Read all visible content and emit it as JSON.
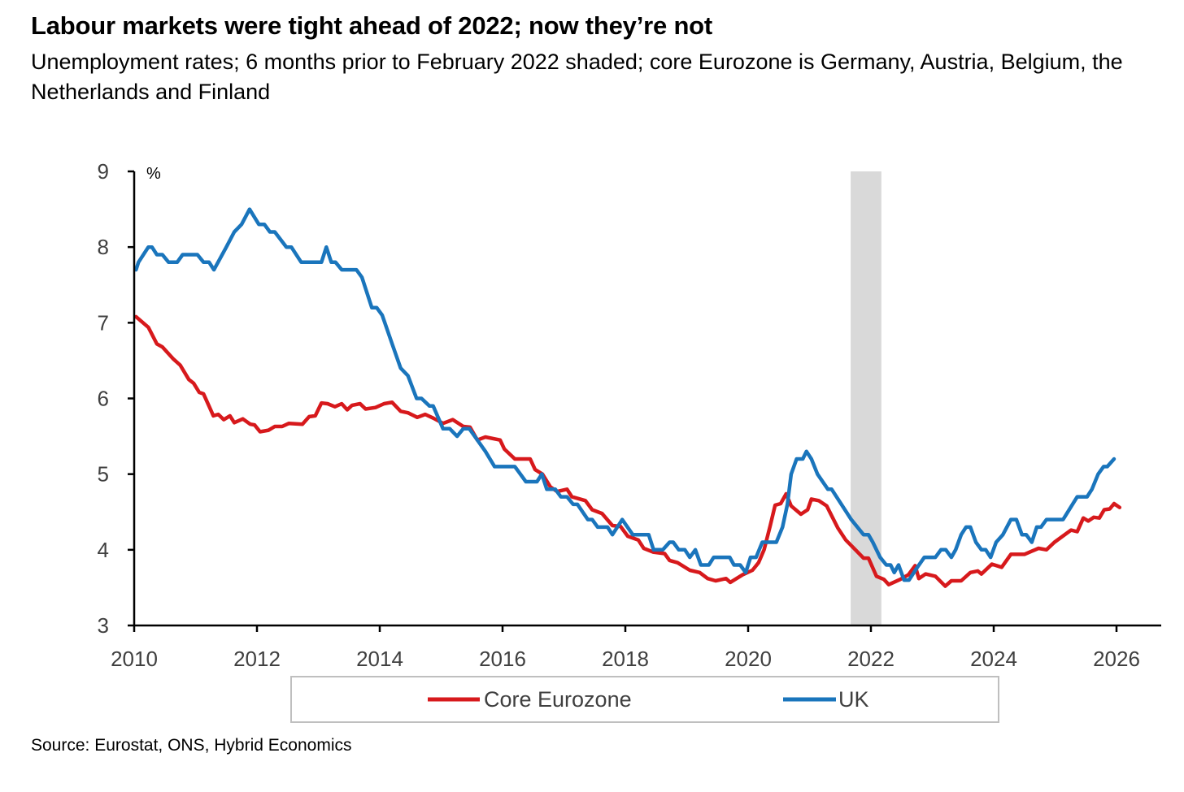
{
  "title": "Labour markets were tight ahead of 2022; now they’re not",
  "subtitle": "Unemployment rates; 6 months prior to February 2022 shaded; core Eurozone is Germany, Austria, Belgium, the Netherlands and Finland",
  "source": "Source: Eurostat, ONS, Hybrid Economics",
  "chart_data": {
    "type": "line",
    "title": "Labour markets were tight ahead of 2022; now they’re not",
    "xlabel": "",
    "ylabel": "%",
    "xlim": [
      2010,
      2026.7
    ],
    "ylim": [
      3,
      9
    ],
    "x_ticks": [
      "2010",
      "2012",
      "2014",
      "2016",
      "2018",
      "2020",
      "2022",
      "2024",
      "2026"
    ],
    "y_ticks": [
      "3",
      "4",
      "5",
      "6",
      "7",
      "8",
      "9"
    ],
    "grid": false,
    "legend_position": "bottom",
    "shaded_period": {
      "label": "6 months prior to February 2022",
      "start": 2021.67,
      "end": 2022.17,
      "color": "#d9d9d9"
    },
    "series": [
      {
        "name": "Core Eurozone",
        "color": "#d7191c",
        "points": [
          [
            2010.03,
            7.08
          ],
          [
            2010.23,
            6.94
          ],
          [
            2010.37,
            6.72
          ],
          [
            2010.46,
            6.68
          ],
          [
            2010.64,
            6.52
          ],
          [
            2010.75,
            6.44
          ],
          [
            2010.89,
            6.25
          ],
          [
            2010.97,
            6.2
          ],
          [
            2011.06,
            6.08
          ],
          [
            2011.13,
            6.06
          ],
          [
            2011.29,
            5.77
          ],
          [
            2011.37,
            5.79
          ],
          [
            2011.46,
            5.72
          ],
          [
            2011.56,
            5.77
          ],
          [
            2011.63,
            5.68
          ],
          [
            2011.77,
            5.73
          ],
          [
            2011.89,
            5.66
          ],
          [
            2011.96,
            5.65
          ],
          [
            2012.05,
            5.56
          ],
          [
            2012.19,
            5.58
          ],
          [
            2012.29,
            5.63
          ],
          [
            2012.41,
            5.63
          ],
          [
            2012.52,
            5.67
          ],
          [
            2012.74,
            5.66
          ],
          [
            2012.85,
            5.76
          ],
          [
            2012.95,
            5.77
          ],
          [
            2013.05,
            5.94
          ],
          [
            2013.15,
            5.93
          ],
          [
            2013.27,
            5.89
          ],
          [
            2013.38,
            5.93
          ],
          [
            2013.47,
            5.85
          ],
          [
            2013.55,
            5.91
          ],
          [
            2013.68,
            5.93
          ],
          [
            2013.77,
            5.86
          ],
          [
            2013.93,
            5.88
          ],
          [
            2014.07,
            5.93
          ],
          [
            2014.2,
            5.95
          ],
          [
            2014.34,
            5.83
          ],
          [
            2014.46,
            5.81
          ],
          [
            2014.61,
            5.75
          ],
          [
            2014.74,
            5.79
          ],
          [
            2014.87,
            5.74
          ],
          [
            2015.03,
            5.67
          ],
          [
            2015.19,
            5.72
          ],
          [
            2015.36,
            5.63
          ],
          [
            2015.47,
            5.62
          ],
          [
            2015.59,
            5.45
          ],
          [
            2015.72,
            5.49
          ],
          [
            2015.96,
            5.45
          ],
          [
            2016.03,
            5.33
          ],
          [
            2016.2,
            5.2
          ],
          [
            2016.45,
            5.2
          ],
          [
            2016.53,
            5.06
          ],
          [
            2016.65,
            5.0
          ],
          [
            2016.78,
            4.83
          ],
          [
            2016.89,
            4.77
          ],
          [
            2017.05,
            4.8
          ],
          [
            2017.13,
            4.7
          ],
          [
            2017.35,
            4.65
          ],
          [
            2017.46,
            4.53
          ],
          [
            2017.62,
            4.48
          ],
          [
            2017.79,
            4.32
          ],
          [
            2017.92,
            4.31
          ],
          [
            2018.04,
            4.18
          ],
          [
            2018.21,
            4.13
          ],
          [
            2018.3,
            4.02
          ],
          [
            2018.45,
            3.97
          ],
          [
            2018.64,
            3.95
          ],
          [
            2018.72,
            3.86
          ],
          [
            2018.85,
            3.83
          ],
          [
            2019.05,
            3.73
          ],
          [
            2019.21,
            3.7
          ],
          [
            2019.34,
            3.62
          ],
          [
            2019.47,
            3.59
          ],
          [
            2019.64,
            3.62
          ],
          [
            2019.71,
            3.57
          ],
          [
            2019.91,
            3.67
          ],
          [
            2020.07,
            3.73
          ],
          [
            2020.17,
            3.83
          ],
          [
            2020.26,
            4.0
          ],
          [
            2020.36,
            4.32
          ],
          [
            2020.44,
            4.59
          ],
          [
            2020.53,
            4.61
          ],
          [
            2020.62,
            4.74
          ],
          [
            2020.7,
            4.58
          ],
          [
            2020.86,
            4.47
          ],
          [
            2020.97,
            4.53
          ],
          [
            2021.03,
            4.67
          ],
          [
            2021.15,
            4.65
          ],
          [
            2021.28,
            4.58
          ],
          [
            2021.46,
            4.29
          ],
          [
            2021.59,
            4.13
          ],
          [
            2021.76,
            3.99
          ],
          [
            2021.88,
            3.89
          ],
          [
            2021.96,
            3.89
          ],
          [
            2022.09,
            3.65
          ],
          [
            2022.21,
            3.61
          ],
          [
            2022.29,
            3.54
          ],
          [
            2022.48,
            3.61
          ],
          [
            2022.61,
            3.67
          ],
          [
            2022.72,
            3.79
          ],
          [
            2022.78,
            3.62
          ],
          [
            2022.89,
            3.68
          ],
          [
            2023.05,
            3.65
          ],
          [
            2023.21,
            3.52
          ],
          [
            2023.31,
            3.59
          ],
          [
            2023.47,
            3.59
          ],
          [
            2023.62,
            3.7
          ],
          [
            2023.74,
            3.72
          ],
          [
            2023.8,
            3.68
          ],
          [
            2023.97,
            3.81
          ],
          [
            2024.13,
            3.77
          ],
          [
            2024.28,
            3.94
          ],
          [
            2024.5,
            3.94
          ],
          [
            2024.73,
            4.02
          ],
          [
            2024.86,
            4.0
          ],
          [
            2024.99,
            4.1
          ],
          [
            2025.26,
            4.26
          ],
          [
            2025.36,
            4.24
          ],
          [
            2025.46,
            4.42
          ],
          [
            2025.54,
            4.38
          ],
          [
            2025.63,
            4.43
          ],
          [
            2025.72,
            4.42
          ],
          [
            2025.8,
            4.53
          ],
          [
            2025.89,
            4.54
          ],
          [
            2025.96,
            4.61
          ],
          [
            2026.05,
            4.56
          ]
        ]
      },
      {
        "name": "UK",
        "color": "#1a75bc",
        "points": [
          [
            2010.03,
            7.7
          ],
          [
            2010.07,
            7.8
          ],
          [
            2010.23,
            8.0
          ],
          [
            2010.29,
            8.0
          ],
          [
            2010.37,
            7.9
          ],
          [
            2010.46,
            7.9
          ],
          [
            2010.56,
            7.8
          ],
          [
            2010.7,
            7.8
          ],
          [
            2010.79,
            7.9
          ],
          [
            2011.03,
            7.9
          ],
          [
            2011.13,
            7.8
          ],
          [
            2011.22,
            7.8
          ],
          [
            2011.3,
            7.7
          ],
          [
            2011.5,
            8.0
          ],
          [
            2011.63,
            8.2
          ],
          [
            2011.75,
            8.3
          ],
          [
            2011.88,
            8.5
          ],
          [
            2012.03,
            8.3
          ],
          [
            2012.12,
            8.3
          ],
          [
            2012.21,
            8.2
          ],
          [
            2012.29,
            8.2
          ],
          [
            2012.48,
            8.0
          ],
          [
            2012.56,
            8.0
          ],
          [
            2012.72,
            7.8
          ],
          [
            2013.05,
            7.8
          ],
          [
            2013.13,
            8.0
          ],
          [
            2013.21,
            7.8
          ],
          [
            2013.28,
            7.8
          ],
          [
            2013.38,
            7.7
          ],
          [
            2013.62,
            7.7
          ],
          [
            2013.71,
            7.6
          ],
          [
            2013.87,
            7.2
          ],
          [
            2013.95,
            7.2
          ],
          [
            2014.04,
            7.1
          ],
          [
            2014.21,
            6.7
          ],
          [
            2014.34,
            6.4
          ],
          [
            2014.46,
            6.3
          ],
          [
            2014.6,
            6.0
          ],
          [
            2014.68,
            6.0
          ],
          [
            2014.81,
            5.9
          ],
          [
            2014.87,
            5.9
          ],
          [
            2015.03,
            5.6
          ],
          [
            2015.14,
            5.6
          ],
          [
            2015.26,
            5.5
          ],
          [
            2015.36,
            5.6
          ],
          [
            2015.46,
            5.6
          ],
          [
            2015.72,
            5.3
          ],
          [
            2015.87,
            5.1
          ],
          [
            2016.2,
            5.1
          ],
          [
            2016.38,
            4.9
          ],
          [
            2016.56,
            4.9
          ],
          [
            2016.64,
            5.0
          ],
          [
            2016.72,
            4.8
          ],
          [
            2016.86,
            4.8
          ],
          [
            2016.95,
            4.7
          ],
          [
            2017.05,
            4.7
          ],
          [
            2017.15,
            4.6
          ],
          [
            2017.22,
            4.6
          ],
          [
            2017.39,
            4.4
          ],
          [
            2017.46,
            4.4
          ],
          [
            2017.55,
            4.3
          ],
          [
            2017.71,
            4.3
          ],
          [
            2017.79,
            4.2
          ],
          [
            2017.95,
            4.4
          ],
          [
            2018.12,
            4.2
          ],
          [
            2018.38,
            4.2
          ],
          [
            2018.46,
            4.0
          ],
          [
            2018.61,
            4.0
          ],
          [
            2018.72,
            4.1
          ],
          [
            2018.78,
            4.1
          ],
          [
            2018.87,
            4.0
          ],
          [
            2018.97,
            4.0
          ],
          [
            2019.05,
            3.9
          ],
          [
            2019.14,
            4.0
          ],
          [
            2019.23,
            3.8
          ],
          [
            2019.36,
            3.8
          ],
          [
            2019.44,
            3.9
          ],
          [
            2019.7,
            3.9
          ],
          [
            2019.77,
            3.8
          ],
          [
            2019.87,
            3.8
          ],
          [
            2019.96,
            3.7
          ],
          [
            2020.04,
            3.9
          ],
          [
            2020.13,
            3.9
          ],
          [
            2020.23,
            4.1
          ],
          [
            2020.46,
            4.1
          ],
          [
            2020.56,
            4.3
          ],
          [
            2020.64,
            4.6
          ],
          [
            2020.7,
            5.0
          ],
          [
            2020.79,
            5.2
          ],
          [
            2020.89,
            5.2
          ],
          [
            2020.95,
            5.3
          ],
          [
            2021.03,
            5.2
          ],
          [
            2021.13,
            5.0
          ],
          [
            2021.3,
            4.8
          ],
          [
            2021.36,
            4.8
          ],
          [
            2021.68,
            4.4
          ],
          [
            2021.88,
            4.2
          ],
          [
            2021.96,
            4.2
          ],
          [
            2022.03,
            4.1
          ],
          [
            2022.15,
            3.9
          ],
          [
            2022.25,
            3.8
          ],
          [
            2022.32,
            3.8
          ],
          [
            2022.38,
            3.7
          ],
          [
            2022.45,
            3.8
          ],
          [
            2022.54,
            3.6
          ],
          [
            2022.62,
            3.6
          ],
          [
            2022.74,
            3.75
          ],
          [
            2022.87,
            3.9
          ],
          [
            2023.05,
            3.9
          ],
          [
            2023.14,
            4.0
          ],
          [
            2023.22,
            4.0
          ],
          [
            2023.31,
            3.9
          ],
          [
            2023.38,
            4.0
          ],
          [
            2023.47,
            4.2
          ],
          [
            2023.55,
            4.3
          ],
          [
            2023.62,
            4.3
          ],
          [
            2023.71,
            4.1
          ],
          [
            2023.8,
            4.0
          ],
          [
            2023.87,
            4.0
          ],
          [
            2023.95,
            3.9
          ],
          [
            2024.04,
            4.1
          ],
          [
            2024.15,
            4.2
          ],
          [
            2024.28,
            4.4
          ],
          [
            2024.37,
            4.4
          ],
          [
            2024.46,
            4.2
          ],
          [
            2024.53,
            4.2
          ],
          [
            2024.62,
            4.1
          ],
          [
            2024.7,
            4.3
          ],
          [
            2024.77,
            4.3
          ],
          [
            2024.86,
            4.4
          ],
          [
            2025.13,
            4.4
          ],
          [
            2025.36,
            4.7
          ],
          [
            2025.52,
            4.7
          ],
          [
            2025.6,
            4.8
          ],
          [
            2025.7,
            5.0
          ],
          [
            2025.79,
            5.1
          ],
          [
            2025.85,
            5.1
          ],
          [
            2025.96,
            5.2
          ]
        ]
      }
    ]
  }
}
